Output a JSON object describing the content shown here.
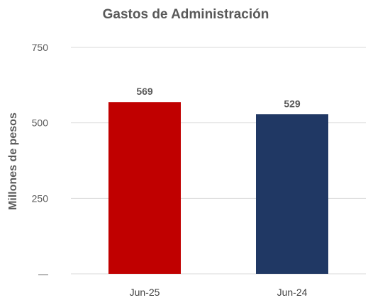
{
  "chart_data": {
    "type": "bar",
    "title": "Gastos de Administración",
    "ylabel": "Millones de pesos",
    "xlabel": "",
    "categories": [
      "Jun-25",
      "Jun-24"
    ],
    "values": [
      569,
      529
    ],
    "data_labels": [
      "569",
      "529"
    ],
    "bar_colors": [
      "#c00000",
      "#203864"
    ],
    "ylim": [
      0,
      750
    ],
    "yticks": [
      0,
      250,
      500,
      750
    ],
    "ytick_labels": [
      "—",
      "250",
      "500",
      "750"
    ],
    "grid": true,
    "legend": "none"
  }
}
